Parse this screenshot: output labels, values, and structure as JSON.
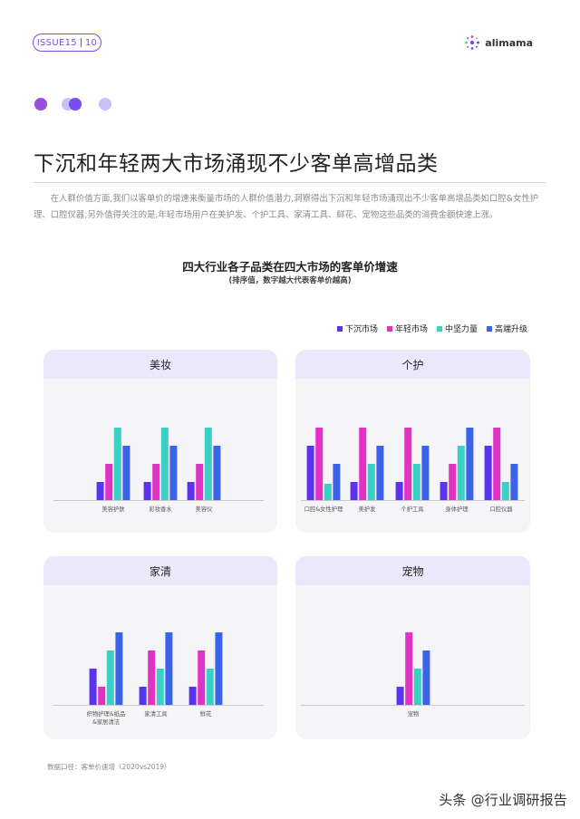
{
  "header": {
    "issue_label": "ISSUE15",
    "page_number": "10",
    "brand": "alimama"
  },
  "title": "下沉和年轻两大市场涌现不少客单高增品类",
  "intro": "在人群价值方面,我们以客单价的增速来衡量市场的人群价值潜力,洞察得出下沉和年轻市场涌现出不少客单高增品类如口腔&女性护理、口腔仪器;另外值得关注的是,年轻市场用户在美护发、个护工具、家清工具、鲜花、宠物这些品类的消费金额快速上涨。",
  "chart_title": "四大行业各子品类在四大市场的客单价增速",
  "chart_subtitle": "(排序值，数字越大代表客单价越高)",
  "colors": {
    "accent": "#7a4df0",
    "panel_bg": "#f5f5f8",
    "panel_head_bg": "#ebe8fb"
  },
  "chart_data": {
    "type": "bar",
    "legend": [
      "下沉市场",
      "年轻市场",
      "中坚力量",
      "高端升级"
    ],
    "legend_position": "top-right",
    "series_colors": [
      "#5b32f0",
      "#e033c4",
      "#3ccfc6",
      "#3a63ea"
    ],
    "panels": [
      {
        "name": "美妆",
        "categories": [
          "美容护肤",
          "彩妆香水",
          "美容仪"
        ],
        "series": [
          {
            "name": "下沉市场",
            "values": [
              1,
              1,
              1
            ]
          },
          {
            "name": "年轻市场",
            "values": [
              2,
              2,
              2
            ]
          },
          {
            "name": "中坚力量",
            "values": [
              4,
              4,
              4
            ]
          },
          {
            "name": "高端升级",
            "values": [
              3,
              3,
              3
            ]
          }
        ]
      },
      {
        "name": "个护",
        "categories": [
          "口腔&女性护理",
          "美护发",
          "个护工具",
          "身体护理",
          "口腔仪器"
        ],
        "series": [
          {
            "name": "下沉市场",
            "values": [
              3,
              1,
              1,
              1,
              3
            ]
          },
          {
            "name": "年轻市场",
            "values": [
              4,
              4,
              4,
              2,
              4
            ]
          },
          {
            "name": "中坚力量",
            "values": [
              0.9,
              2,
              2,
              3,
              1
            ]
          },
          {
            "name": "高端升级",
            "values": [
              2,
              3,
              3,
              4,
              2
            ]
          }
        ]
      },
      {
        "name": "家清",
        "categories": [
          "织物护理&纸品&家居清洁",
          "家清工具",
          "鲜花"
        ],
        "series": [
          {
            "name": "下沉市场",
            "values": [
              2,
              1,
              1
            ]
          },
          {
            "name": "年轻市场",
            "values": [
              1,
              3,
              3
            ]
          },
          {
            "name": "中坚力量",
            "values": [
              3,
              2,
              2
            ]
          },
          {
            "name": "高端升级",
            "values": [
              4,
              4,
              4
            ]
          }
        ]
      },
      {
        "name": "宠物",
        "categories": [
          "宠物"
        ],
        "series": [
          {
            "name": "下沉市场",
            "values": [
              1
            ]
          },
          {
            "name": "年轻市场",
            "values": [
              4
            ]
          },
          {
            "name": "中坚力量",
            "values": [
              2
            ]
          },
          {
            "name": "高端升级",
            "values": [
              3
            ]
          }
        ]
      }
    ]
  },
  "category_labels": {
    "beauty": [
      "美容护肤",
      "彩妆香水",
      "美容仪"
    ],
    "personal_care": [
      "口腔&女性护理",
      "美护发",
      "个护工具",
      "身体护理",
      "口腔仪器"
    ],
    "home_clean": [
      "织物护理&纸品",
      "&家居清洁",
      "家清工具",
      "鲜花"
    ],
    "pet": [
      "宠物"
    ]
  },
  "source": "数据口径：客单价速增（2020vs2019）",
  "footer": "头条 @行业调研报告"
}
